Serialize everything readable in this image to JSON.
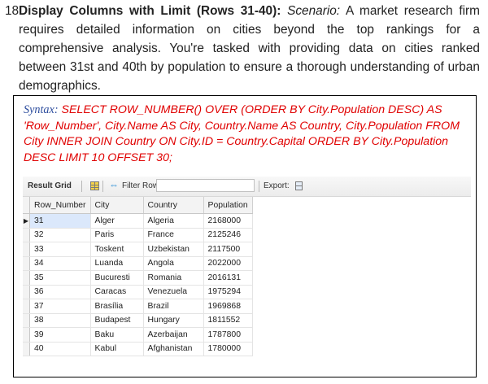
{
  "question": {
    "number": "18.",
    "title": "Display Columns with Limit (Rows 31-40):",
    "scenario_label": "Scenario:",
    "text": "A market research firm requires detailed information on cities beyond the top rankings for a comprehensive analysis. You're tasked with providing data on cities ranked between 31st and 40th by population to ensure a thorough understanding of urban demographics."
  },
  "syntax": {
    "label": "Syntax:",
    "query": "SELECT ROW_NUMBER() OVER (ORDER BY City.Population DESC) AS 'Row_Number', City.Name AS City, Country.Name AS Country, City.Population FROM City INNER JOIN Country ON City.ID = Country.Capital ORDER BY City.Population DESC LIMIT 10 OFFSET 30;"
  },
  "toolbar": {
    "result_grid": "Result Grid",
    "filter_rows": "Filter Rows:",
    "filter_value": "",
    "export": "Export:",
    "icons": [
      "grid-layout-icon",
      "filter-icon",
      "export-icon"
    ]
  },
  "table": {
    "columns": [
      "Row_Number",
      "City",
      "Country",
      "Population"
    ],
    "rows": [
      [
        "31",
        "Alger",
        "Algeria",
        "2168000"
      ],
      [
        "32",
        "Paris",
        "France",
        "2125246"
      ],
      [
        "33",
        "Toskent",
        "Uzbekistan",
        "2117500"
      ],
      [
        "34",
        "Luanda",
        "Angola",
        "2022000"
      ],
      [
        "35",
        "Bucuresti",
        "Romania",
        "2016131"
      ],
      [
        "36",
        "Caracas",
        "Venezuela",
        "1975294"
      ],
      [
        "37",
        "Brasília",
        "Brazil",
        "1969868"
      ],
      [
        "38",
        "Budapest",
        "Hungary",
        "1811552"
      ],
      [
        "39",
        "Baku",
        "Azerbaijan",
        "1787800"
      ],
      [
        "40",
        "Kabul",
        "Afghanistan",
        "1780000"
      ]
    ],
    "selected_row": 0
  }
}
